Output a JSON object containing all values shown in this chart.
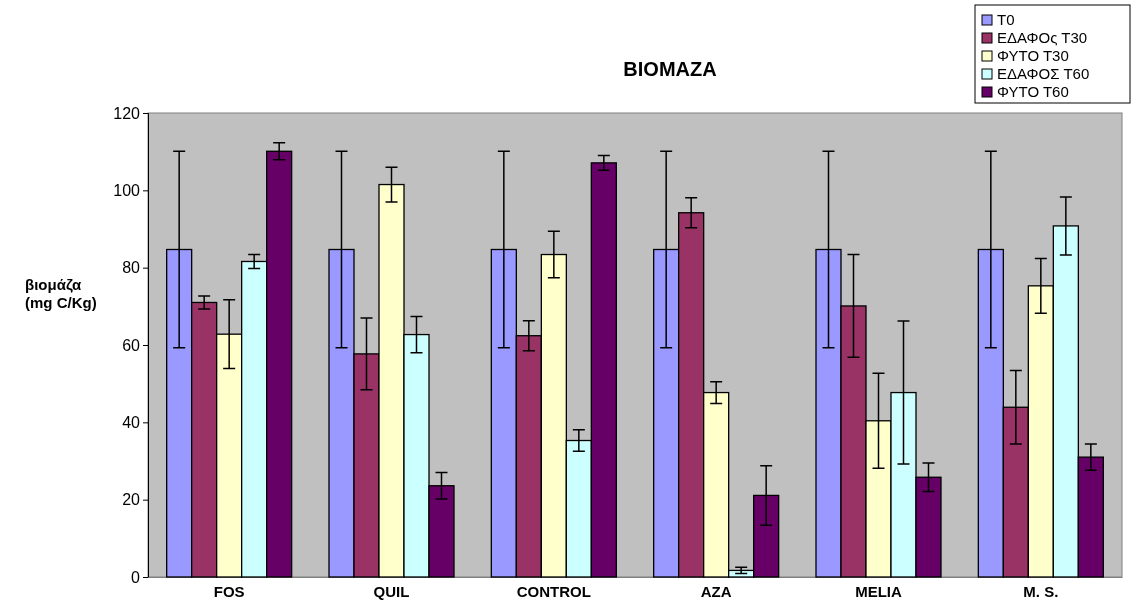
{
  "chart_data": {
    "type": "bar",
    "title": "BIOMAZA",
    "ylabel": "βιομάζα\n(mg C/Kg)",
    "categories": [
      "FOS",
      "QUIL",
      "CONTROL",
      "AZA",
      "MELIA",
      "M. S."
    ],
    "series": [
      {
        "name": "T0",
        "color": "#9999ff",
        "values": [
          84.7,
          84.7,
          84.7,
          84.7,
          84.7,
          84.7
        ],
        "errors": [
          25.4,
          25.4,
          25.4,
          25.4,
          25.4,
          25.4
        ]
      },
      {
        "name": "ΕΔΑΦΟς Τ30",
        "color": "#993366",
        "values": [
          71.0,
          57.7,
          62.4,
          94.2,
          70.1,
          43.9
        ],
        "errors": [
          1.7,
          9.3,
          3.9,
          3.9,
          13.3,
          9.5
        ]
      },
      {
        "name": "ΦΥΤΟ Τ30",
        "color": "#ffffcc",
        "values": [
          62.8,
          101.5,
          83.4,
          47.7,
          40.4,
          75.3
        ],
        "errors": [
          8.9,
          4.5,
          6.0,
          2.8,
          12.3,
          7.1
        ]
      },
      {
        "name": "ΕΔΑΦΟΣ Τ60",
        "color": "#ccffff",
        "values": [
          81.6,
          62.7,
          35.3,
          1.7,
          47.7,
          90.8
        ],
        "errors": [
          1.8,
          4.7,
          2.8,
          0.8,
          18.5,
          7.5
        ]
      },
      {
        "name": "ΦΥΤΟ Τ60",
        "color": "#660066",
        "values": [
          110.1,
          23.6,
          107.1,
          21.1,
          25.8,
          31.0
        ],
        "errors": [
          2.2,
          3.4,
          1.9,
          7.7,
          3.7,
          3.4
        ]
      }
    ],
    "ylim": [
      0,
      120
    ],
    "yticks": [
      0,
      20,
      40,
      60,
      80,
      100,
      120
    ],
    "grid": false,
    "legend": "top right"
  }
}
